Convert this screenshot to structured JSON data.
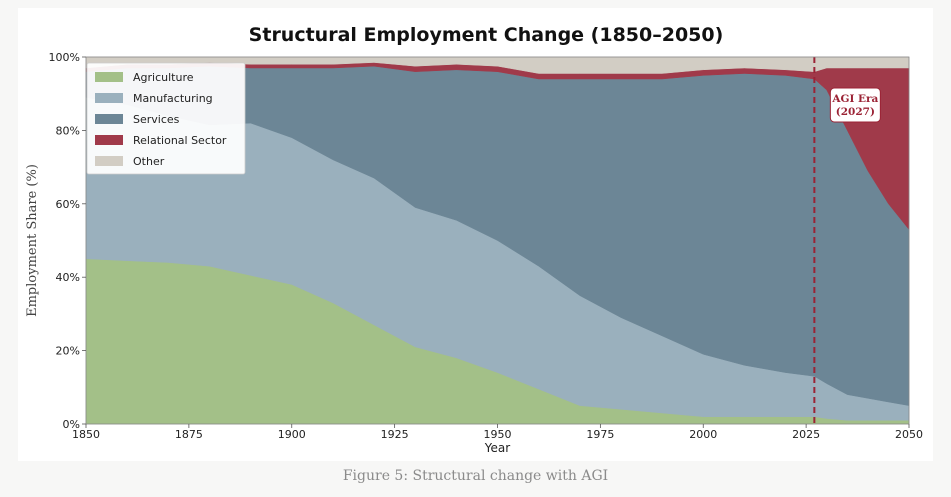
{
  "caption": "Figure 5: Structural change with AGI",
  "chart_data": {
    "type": "area",
    "stacked": true,
    "title": "Structural Employment Change (1850–2050)",
    "xlabel": "Year",
    "ylabel": "Employment Share (%)",
    "xlim": [
      1850,
      2050
    ],
    "ylim": [
      0,
      100
    ],
    "x_ticks": [
      "1850",
      "1875",
      "1900",
      "1925",
      "1950",
      "1975",
      "2000",
      "2025",
      "2050"
    ],
    "y_ticks": [
      "0%",
      "20%",
      "40%",
      "60%",
      "80%",
      "100%"
    ],
    "x": [
      1850,
      1860,
      1870,
      1880,
      1890,
      1900,
      1910,
      1920,
      1930,
      1940,
      1950,
      1960,
      1970,
      1980,
      1990,
      2000,
      2010,
      2020,
      2027,
      2030,
      2035,
      2040,
      2045,
      2050
    ],
    "series": [
      {
        "name": "Agriculture",
        "color": "#a3c088",
        "values": [
          45,
          44.5,
          44,
          43,
          40.5,
          38,
          33,
          27,
          21,
          18,
          14,
          9.5,
          5,
          4,
          3,
          2,
          2,
          2,
          2,
          1.5,
          1,
          1,
          1,
          1
        ]
      },
      {
        "name": "Manufacturing",
        "color": "#9ab0bd",
        "values": [
          44,
          42.5,
          40,
          38.5,
          41.5,
          40,
          39,
          40,
          38,
          37.5,
          36,
          33.5,
          30,
          25,
          21,
          17,
          14,
          12,
          11,
          9.5,
          7,
          6,
          5,
          4
        ]
      },
      {
        "name": "Services",
        "color": "#6c8696",
        "values": [
          7,
          10,
          13,
          16,
          15,
          19,
          25,
          30.5,
          37,
          41,
          46,
          51,
          59,
          65,
          70,
          76,
          79.5,
          81,
          81,
          80,
          72,
          62,
          54,
          48
        ]
      },
      {
        "name": "Relational Sector",
        "color": "#a03a4a",
        "values": [
          1,
          1,
          1,
          1,
          1,
          1,
          1,
          1,
          1.5,
          1.5,
          1.5,
          1.5,
          1.5,
          1.5,
          1.5,
          1.5,
          1.5,
          1.5,
          2,
          6,
          17,
          28,
          37,
          44
        ]
      },
      {
        "name": "Other",
        "color": "#d2cdc4",
        "values": [
          3,
          2,
          2,
          1.5,
          2,
          2,
          2,
          1.5,
          2.5,
          2,
          2.5,
          4.5,
          4.5,
          4.5,
          4.5,
          3.5,
          3,
          3.5,
          4,
          3,
          3,
          3,
          3,
          3
        ]
      }
    ],
    "annotations": [
      {
        "text_lines": [
          "AGI Era",
          "(2027)"
        ],
        "x": 2027
      }
    ],
    "vline": {
      "x": 2027,
      "color": "#9b2335",
      "style": "dashed"
    },
    "legend_position": "top-left",
    "grid": false
  }
}
